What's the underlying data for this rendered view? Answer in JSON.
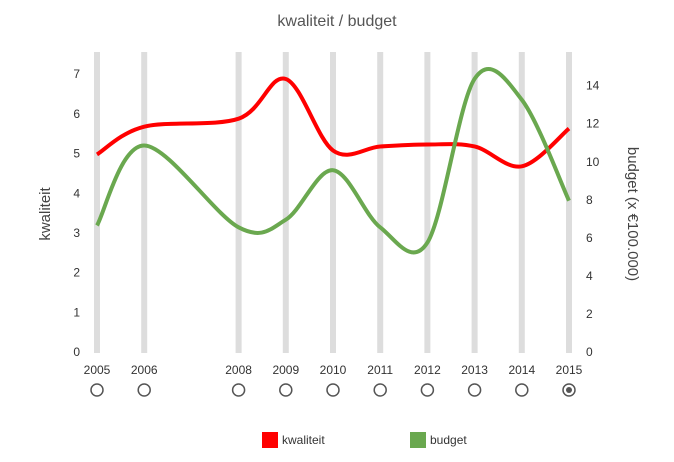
{
  "chart_data": {
    "type": "line",
    "title": "kwaliteit / budget",
    "y_label": "kwaliteit",
    "y2_label": "budget (x €100.000)",
    "x": [
      2005,
      2006,
      2008,
      2009,
      2010,
      2011,
      2012,
      2013,
      2014,
      2015
    ],
    "xlim": [
      2005,
      2015
    ],
    "xticks": [
      2005,
      2006,
      2008,
      2009,
      2010,
      2011,
      2012,
      2013,
      2014,
      2015
    ],
    "ylim": [
      0,
      7
    ],
    "yticks": [
      0,
      1,
      2,
      3,
      4,
      5,
      6,
      7
    ],
    "y2lim": [
      0,
      14.6
    ],
    "y2ticks": [
      0,
      2,
      4,
      6,
      8,
      10,
      12,
      14
    ],
    "series": [
      {
        "name": "kwaliteit",
        "color": "#ff0000",
        "values": [
          5.0,
          5.7,
          5.9,
          6.9,
          5.1,
          5.2,
          5.25,
          5.2,
          4.7,
          5.65
        ]
      },
      {
        "name": "budget",
        "color": "#6aa84f",
        "axis": "y2",
        "values": [
          6.7,
          10.9,
          6.6,
          7.0,
          9.6,
          6.6,
          5.8,
          14.4,
          13.3,
          8.0
        ]
      }
    ],
    "selected": 9
  }
}
